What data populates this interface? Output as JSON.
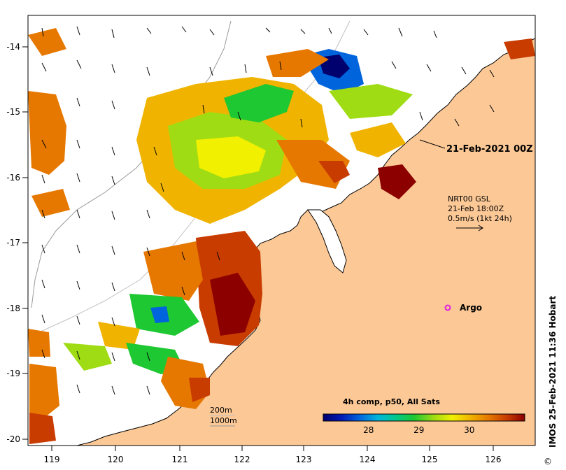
{
  "map": {
    "longitude_ticks": [
      "119",
      "120",
      "121",
      "122",
      "123",
      "124",
      "125",
      "126"
    ],
    "latitude_ticks": [
      "-14",
      "-15",
      "-16",
      "-17",
      "-18",
      "-19",
      "-20"
    ],
    "lon_range": [
      118.6,
      126.7
    ],
    "lat_range": [
      -20.1,
      -13.5
    ],
    "land_color": "#fbc896",
    "coastline_color": "#000000"
  },
  "annotations": {
    "date_label": "21-Feb-2021 00Z",
    "current_product": "NRT00 GSL",
    "current_time": "21-Feb 18:00Z",
    "vector_scale": "0.5m/s (1kt 24h)",
    "argo_label": "Argo",
    "argo_color": "#e020e0",
    "isobath_200": "200m",
    "isobath_1000": "1000m"
  },
  "colorbar": {
    "title": "4h comp, p50, All Sats",
    "ticks": [
      "28",
      "29",
      "30"
    ],
    "tick_values": [
      28,
      29,
      30
    ],
    "min": 27.1,
    "max": 31.1,
    "colors": [
      "#00006e",
      "#0018b4",
      "#0064dc",
      "#00b4dc",
      "#00c88c",
      "#1ec832",
      "#a0dc14",
      "#f0f000",
      "#f0b400",
      "#e67800",
      "#c83c00",
      "#8c0000"
    ]
  },
  "credit": "IMOS 25-Feb-2021 11:36 Hobart",
  "copyright_symbol": "©"
}
